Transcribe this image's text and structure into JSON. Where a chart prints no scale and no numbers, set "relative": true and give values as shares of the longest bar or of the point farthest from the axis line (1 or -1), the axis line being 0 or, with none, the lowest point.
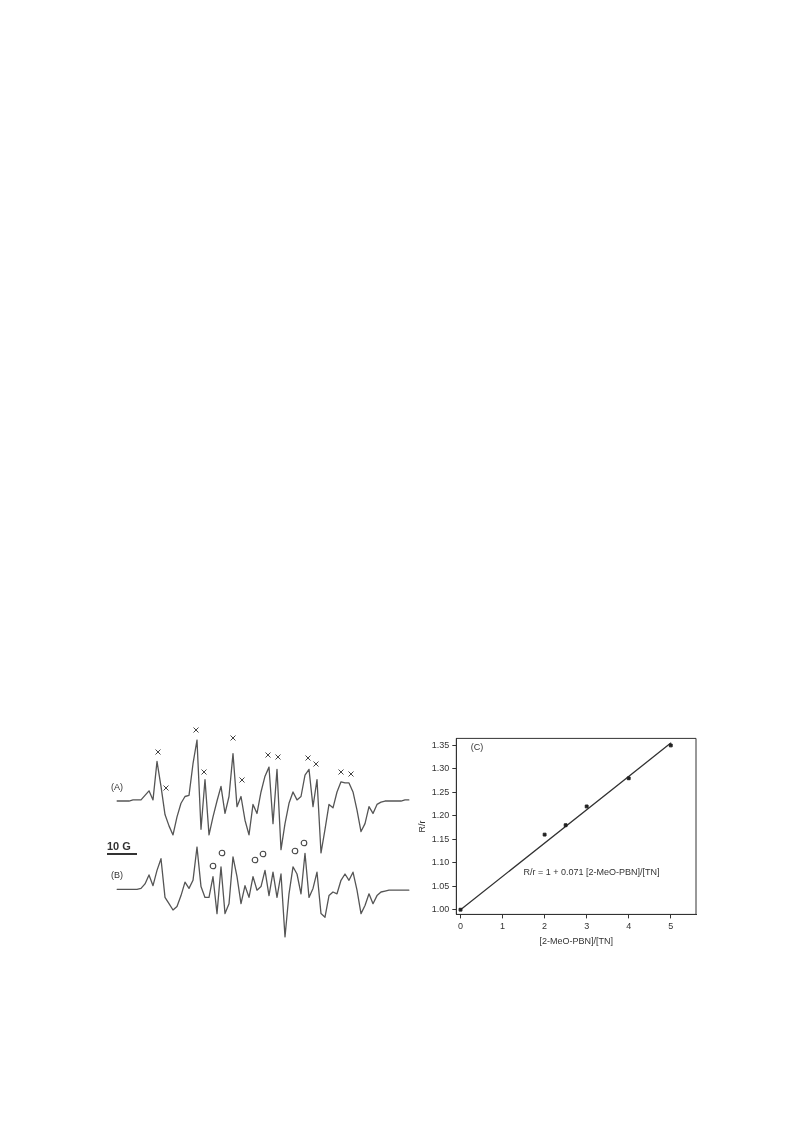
{
  "chart_data": [
    {
      "type": "line",
      "relative": true,
      "categories": [
        null,
        null,
        null,
        null,
        null,
        null,
        null,
        null,
        null,
        null,
        null,
        null,
        null,
        null,
        null,
        null,
        null,
        null,
        null,
        null,
        null,
        null,
        null,
        null,
        null,
        null,
        null,
        null,
        null,
        null,
        null,
        null,
        null,
        null,
        null,
        null,
        null,
        null,
        null,
        null,
        null,
        null,
        null,
        null,
        null,
        null,
        null,
        null,
        null,
        null,
        null,
        null,
        null,
        null,
        null,
        null,
        null,
        null,
        null,
        null,
        null,
        null,
        null,
        null,
        null,
        null,
        null,
        null,
        null,
        null,
        null,
        null,
        null,
        null
      ],
      "series": [
        {
          "name": "(A)",
          "color": "#555555",
          "marker": "none",
          "values": [
            0.46,
            0.46,
            0.46,
            0.46,
            0.47,
            0.47,
            0.47,
            0.51,
            0.55,
            0.47,
            0.81,
            0.59,
            0.34,
            0.24,
            0.16,
            0.32,
            0.44,
            0.5,
            0.51,
            0.79,
            1.0,
            0.21,
            0.65,
            0.16,
            0.32,
            0.46,
            0.59,
            0.35,
            0.5,
            0.88,
            0.41,
            0.5,
            0.29,
            0.16,
            0.43,
            0.35,
            0.54,
            0.68,
            0.76,
            0.26,
            0.74,
            0.03,
            0.26,
            0.44,
            0.54,
            0.47,
            0.5,
            0.69,
            0.74,
            0.41,
            0.65,
            0,
            0.21,
            0.43,
            0.4,
            0.54,
            0.63,
            0.62,
            0.62,
            0.54,
            0.38,
            0.19,
            0.26,
            0.41,
            0.35,
            0.43,
            0.45,
            0.46,
            0.46,
            0.46,
            0.46,
            0.46,
            0.47,
            0.47
          ]
        }
      ],
      "annotations": [
        "10 G"
      ]
    },
    {
      "type": "line",
      "relative": true,
      "categories": [
        null,
        null,
        null,
        null,
        null,
        null,
        null,
        null,
        null,
        null,
        null,
        null,
        null,
        null,
        null,
        null,
        null,
        null,
        null,
        null,
        null,
        null,
        null,
        null,
        null,
        null,
        null,
        null,
        null,
        null,
        null,
        null,
        null,
        null,
        null,
        null,
        null,
        null,
        null,
        null,
        null,
        null,
        null,
        null,
        null,
        null,
        null,
        null,
        null,
        null,
        null,
        null,
        null,
        null,
        null,
        null,
        null,
        null,
        null,
        null,
        null,
        null,
        null,
        null,
        null,
        null,
        null,
        null,
        null,
        null,
        null,
        null,
        null,
        null
      ],
      "series": [
        {
          "name": "(B)",
          "color": "#555555",
          "marker": "none",
          "values": [
            0.53,
            0.53,
            0.53,
            0.53,
            0.53,
            0.53,
            0.54,
            0.59,
            0.69,
            0.57,
            0.74,
            0.87,
            0.44,
            0.37,
            0.3,
            0.34,
            0.46,
            0.61,
            0.54,
            0.63,
            1.0,
            0.56,
            0.44,
            0.44,
            0.67,
            0.26,
            0.78,
            0.26,
            0.37,
            0.89,
            0.67,
            0.37,
            0.57,
            0.44,
            0.67,
            0.52,
            0.56,
            0.74,
            0.46,
            0.72,
            0.44,
            0.7,
            0,
            0.48,
            0.78,
            0.7,
            0.48,
            0.93,
            0.44,
            0.54,
            0.72,
            0.26,
            0.22,
            0.46,
            0.5,
            0.48,
            0.63,
            0.7,
            0.63,
            0.72,
            0.52,
            0.26,
            0.35,
            0.48,
            0.37,
            0.46,
            0.5,
            0.51,
            0.52,
            0.52,
            0.52,
            0.52,
            0.52,
            0.52
          ]
        }
      ]
    },
    {
      "type": "scatter",
      "xlabel": "[2-MeO-PBN]/[TN]",
      "ylabel": "R/r",
      "xlim": [
        -0.1,
        5.6
      ],
      "xticks": [
        0,
        1,
        2,
        3,
        4,
        5
      ],
      "ylim": [
        0.99,
        1.365
      ],
      "yticks": [
        {
          "value": 1.0,
          "label": "1.00"
        },
        1.05,
        {
          "value": 1.1,
          "label": "1.10"
        },
        1.15,
        {
          "value": 1.2,
          "label": "1.20"
        },
        1.25,
        {
          "value": 1.3,
          "label": "1.30"
        },
        1.35
      ],
      "series": [
        {
          "color": "#222222",
          "marker": "square",
          "x": [
            0,
            2,
            2.5,
            3,
            4,
            5
          ],
          "values": [
            1.0,
            1.16,
            1.18,
            1.22,
            1.28,
            1.35
          ]
        },
        {
          "type": "line",
          "color": "#333333",
          "marker": "none",
          "x": [
            0,
            5
          ],
          "values": [
            1.0,
            1.355
          ]
        }
      ],
      "annotations": [
        "(C)",
        "R/r = 1 + 0.071 [2-MeO-PBN]/[TN]"
      ]
    }
  ]
}
